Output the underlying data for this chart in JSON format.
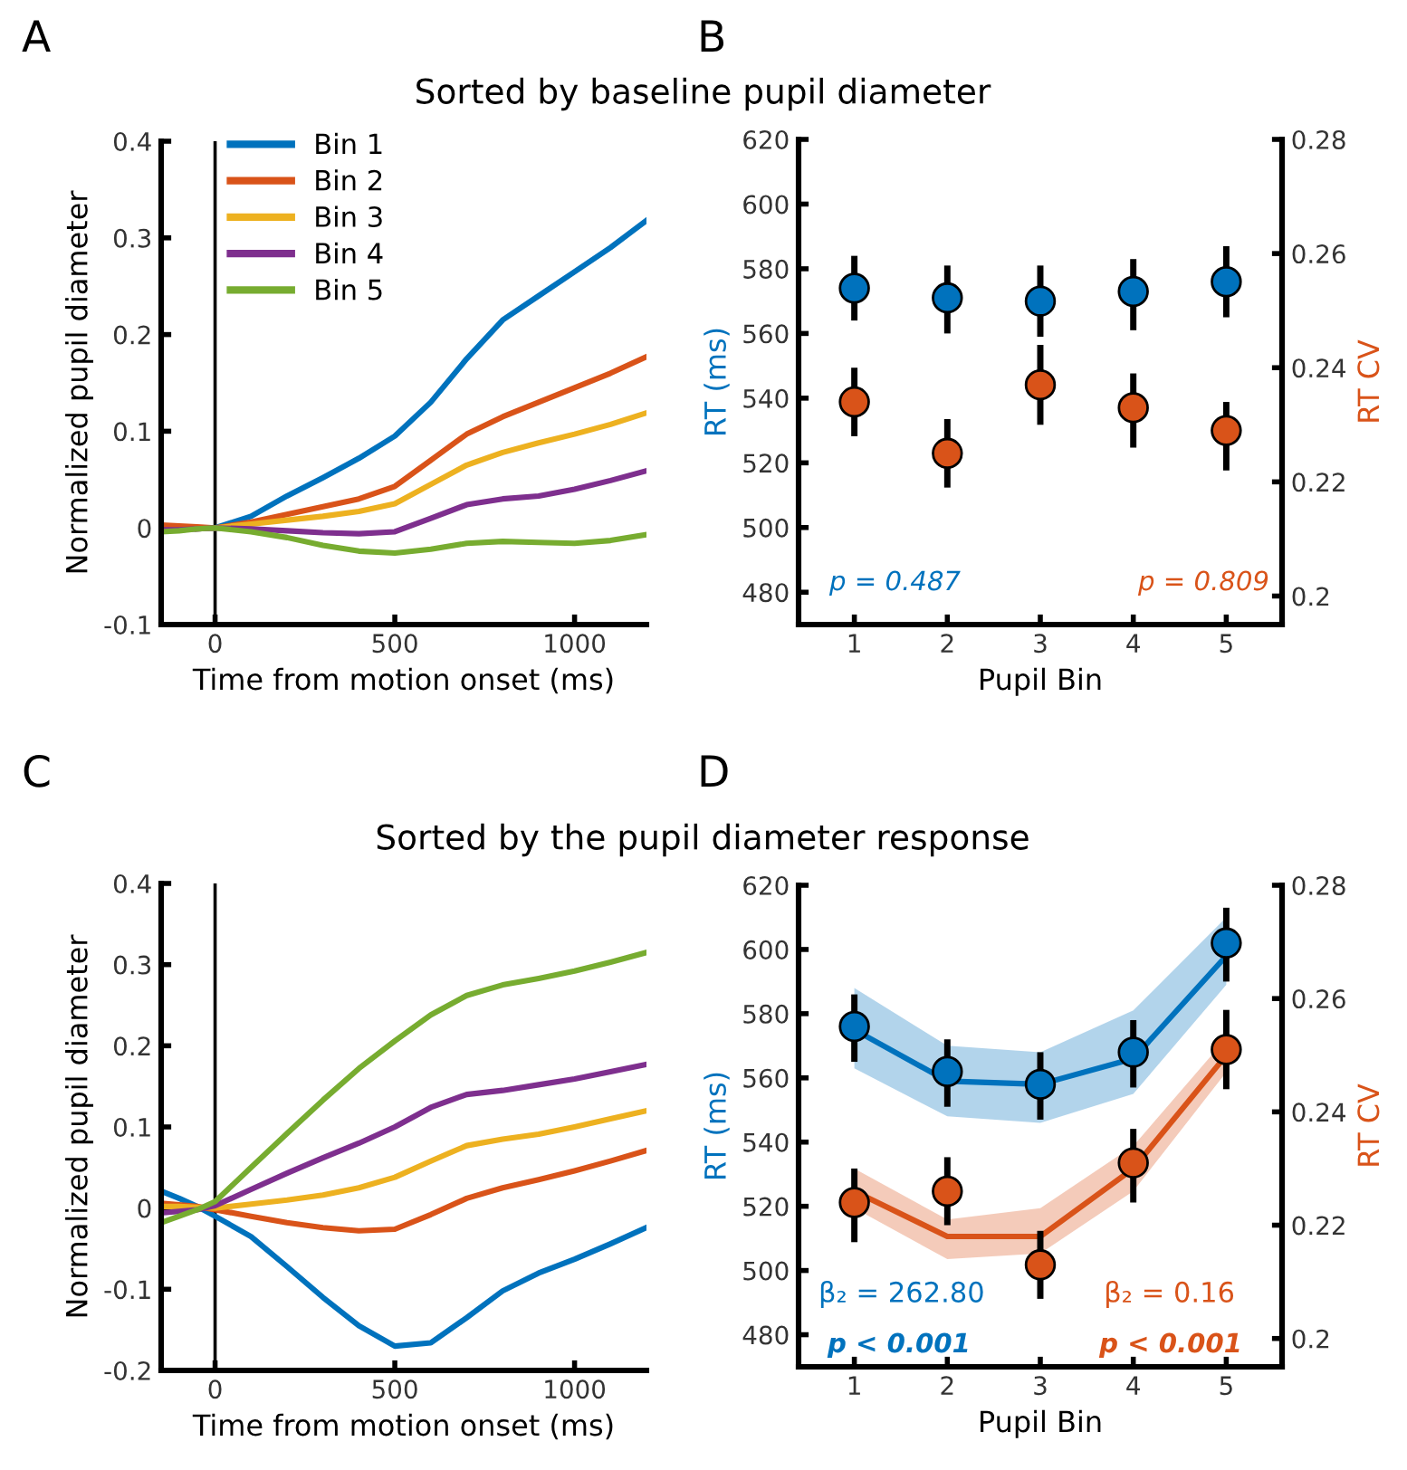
{
  "chart_data": [
    {
      "type": "line",
      "title": "Sorted by baseline pupil diameter",
      "xlabel": "Time from motion onset (ms)",
      "ylabel": "Normalized pupil diameter",
      "x": [
        -150,
        -100,
        -50,
        0,
        100,
        200,
        300,
        400,
        500,
        600,
        700,
        800,
        900,
        1000,
        1100,
        1200
      ],
      "xlim": [
        -150,
        1200
      ],
      "xticks": [
        0,
        500,
        1000
      ],
      "ylim": [
        -0.1,
        0.4
      ],
      "yticks": [
        -0.1,
        0,
        0.1,
        0.2,
        0.3,
        0.4
      ],
      "ref_lines": [
        {
          "axis": "x",
          "value": 0,
          "color": "#000000"
        }
      ],
      "legend": "top left",
      "grid": false,
      "marker": "none",
      "line_style": "solid",
      "series": [
        {
          "name": "Bin 1",
          "color": "#0072bd",
          "values": [
            null,
            null,
            -0.001,
            0,
            0.012,
            0.033,
            0.052,
            0.072,
            0.095,
            0.13,
            0.175,
            0.215,
            0.24,
            0.265,
            0.29,
            0.318
          ]
        },
        {
          "name": "Bin 2",
          "color": "#d95319",
          "values": [
            0.003,
            0.002,
            0.001,
            0,
            0.006,
            0.014,
            0.022,
            0.03,
            0.043,
            0.07,
            0.097,
            0.115,
            0.13,
            0.145,
            0.16,
            0.177
          ]
        },
        {
          "name": "Bin 3",
          "color": "#edb120",
          "values": [
            null,
            null,
            -0.001,
            0,
            0.004,
            0.008,
            0.012,
            0.017,
            0.025,
            0.045,
            0.065,
            0.078,
            0.088,
            0.097,
            0.107,
            0.119
          ]
        },
        {
          "name": "Bin 4",
          "color": "#7e2f8e",
          "values": [
            -0.002,
            -0.002,
            -0.001,
            0,
            -0.001,
            -0.003,
            -0.005,
            -0.006,
            -0.004,
            0.01,
            0.024,
            0.03,
            0.033,
            0.04,
            0.049,
            0.059
          ]
        },
        {
          "name": "Bin 5",
          "color": "#77ac30",
          "values": [
            -0.004,
            -0.003,
            -0.001,
            0,
            -0.004,
            -0.01,
            -0.018,
            -0.024,
            -0.026,
            -0.022,
            -0.016,
            -0.014,
            -0.015,
            -0.016,
            -0.013,
            -0.007
          ]
        }
      ],
      "annotations": [
        "A"
      ]
    },
    {
      "type": "scatter",
      "categories": [
        "1",
        "2",
        "3",
        "4",
        "5"
      ],
      "xlabel": "Pupil Bin",
      "ylabel": "RT (ms)",
      "y2label": "RT CV",
      "ylim": [
        470,
        620
      ],
      "yticks": [
        480,
        500,
        520,
        540,
        560,
        580,
        600,
        620
      ],
      "y2lim": [
        0.195,
        0.28
      ],
      "y2ticks": [
        0.2,
        0.22,
        0.24,
        0.26,
        0.28
      ],
      "grid": false,
      "series": [
        {
          "type": "scatter",
          "marker": "circle",
          "color": "#0072bd",
          "values": [
            574,
            571,
            570,
            573,
            576
          ],
          "errors": [
            [
              564,
              584
            ],
            [
              560,
              581
            ],
            [
              559,
              581
            ],
            [
              561,
              583
            ],
            [
              565,
              587
            ]
          ]
        },
        {
          "type": "scatter",
          "marker": "circle",
          "axis": "y2",
          "color": "#d95319",
          "values": [
            0.234,
            0.225,
            0.237,
            0.233,
            0.229
          ],
          "errors": [
            [
              0.228,
              0.24
            ],
            [
              0.219,
              0.231
            ],
            [
              0.23,
              0.244
            ],
            [
              0.226,
              0.239
            ],
            [
              0.222,
              0.234
            ]
          ]
        }
      ],
      "annotations": [
        "B",
        "p = 0.487",
        "p = 0.809"
      ]
    },
    {
      "type": "line",
      "title": "Sorted by the pupil diameter response",
      "xlabel": "Time from motion onset (ms)",
      "ylabel": "Normalized pupil diameter",
      "x": [
        -150,
        -100,
        -50,
        0,
        100,
        200,
        300,
        400,
        500,
        600,
        700,
        800,
        900,
        1000,
        1100,
        1200
      ],
      "xlim": [
        -150,
        1200
      ],
      "xticks": [
        0,
        500,
        1000
      ],
      "ylim": [
        -0.2,
        0.4
      ],
      "yticks": [
        -0.2,
        -0.1,
        0,
        0.1,
        0.2,
        0.3,
        0.4
      ],
      "ref_lines": [
        {
          "axis": "x",
          "value": 0,
          "color": "#000000"
        }
      ],
      "grid": false,
      "marker": "none",
      "line_style": "solid",
      "series": [
        {
          "color": "#0072bd",
          "values": [
            0.021,
            0.012,
            0.002,
            -0.01,
            -0.035,
            -0.072,
            -0.11,
            -0.145,
            -0.17,
            -0.166,
            -0.135,
            -0.102,
            -0.08,
            -0.063,
            -0.044,
            -0.024
          ]
        },
        {
          "color": "#d95319",
          "values": [
            0.006,
            0.004,
            0.002,
            -0.002,
            -0.01,
            -0.018,
            -0.024,
            -0.028,
            -0.026,
            -0.008,
            0.012,
            0.025,
            0.035,
            0.046,
            0.058,
            0.071
          ]
        },
        {
          "color": "#edb120",
          "values": [
            0.002,
            0.002,
            0.001,
            0,
            0.005,
            0.01,
            0.016,
            0.025,
            0.038,
            0.058,
            0.077,
            0.085,
            0.091,
            0.1,
            0.11,
            0.12
          ]
        },
        {
          "color": "#7e2f8e",
          "values": [
            -0.006,
            -0.004,
            -0.002,
            0.003,
            0.023,
            0.043,
            0.062,
            0.08,
            0.1,
            0.124,
            0.14,
            0.145,
            0.152,
            0.159,
            0.168,
            0.177
          ]
        },
        {
          "color": "#77ac30",
          "values": [
            -0.018,
            -0.01,
            -0.002,
            0.008,
            0.05,
            0.092,
            0.133,
            0.172,
            0.206,
            0.238,
            0.262,
            0.275,
            0.283,
            0.292,
            0.303,
            0.315
          ]
        }
      ],
      "annotations": [
        "C"
      ]
    },
    {
      "type": "scatter",
      "categories": [
        "1",
        "2",
        "3",
        "4",
        "5"
      ],
      "xlabel": "Pupil Bin",
      "ylabel": "RT (ms)",
      "y2label": "RT CV",
      "ylim": [
        470,
        620
      ],
      "yticks": [
        480,
        500,
        520,
        540,
        560,
        580,
        600,
        620
      ],
      "y2lim": [
        0.195,
        0.28
      ],
      "y2ticks": [
        0.2,
        0.22,
        0.24,
        0.26,
        0.28
      ],
      "grid": false,
      "series": [
        {
          "type": "line",
          "marker": "none",
          "color": "#0072bd",
          "values": [
            575,
            559,
            558,
            566,
            598
          ],
          "lower": [
            563,
            548,
            546,
            555,
            589
          ],
          "upper": [
            588,
            570,
            568,
            581,
            610
          ]
        },
        {
          "type": "scatter",
          "marker": "circle",
          "color": "#0072bd",
          "values": [
            576,
            562,
            558,
            568,
            602
          ],
          "errors": [
            [
              565,
              586
            ],
            [
              551,
              572
            ],
            [
              547,
              568
            ],
            [
              557,
              578
            ],
            [
              590,
              613
            ]
          ]
        },
        {
          "type": "line",
          "marker": "none",
          "axis": "y2",
          "color": "#d95319",
          "values": [
            0.226,
            0.218,
            0.218,
            0.23,
            0.25
          ],
          "lower": [
            0.223,
            0.214,
            0.215,
            0.226,
            0.247
          ],
          "upper": [
            0.23,
            0.221,
            0.223,
            0.234,
            0.253
          ]
        },
        {
          "type": "scatter",
          "marker": "circle",
          "axis": "y2",
          "color": "#d95319",
          "values": [
            0.224,
            0.226,
            0.213,
            0.231,
            0.251
          ],
          "errors": [
            [
              0.217,
              0.23
            ],
            [
              0.22,
              0.232
            ],
            [
              0.207,
              0.219
            ],
            [
              0.224,
              0.237
            ],
            [
              0.244,
              0.258
            ]
          ]
        }
      ],
      "annotations": [
        "D",
        "β₂ = 262.80",
        "p < 0.001",
        "β₂ = 0.16",
        "p < 0.001"
      ]
    }
  ]
}
